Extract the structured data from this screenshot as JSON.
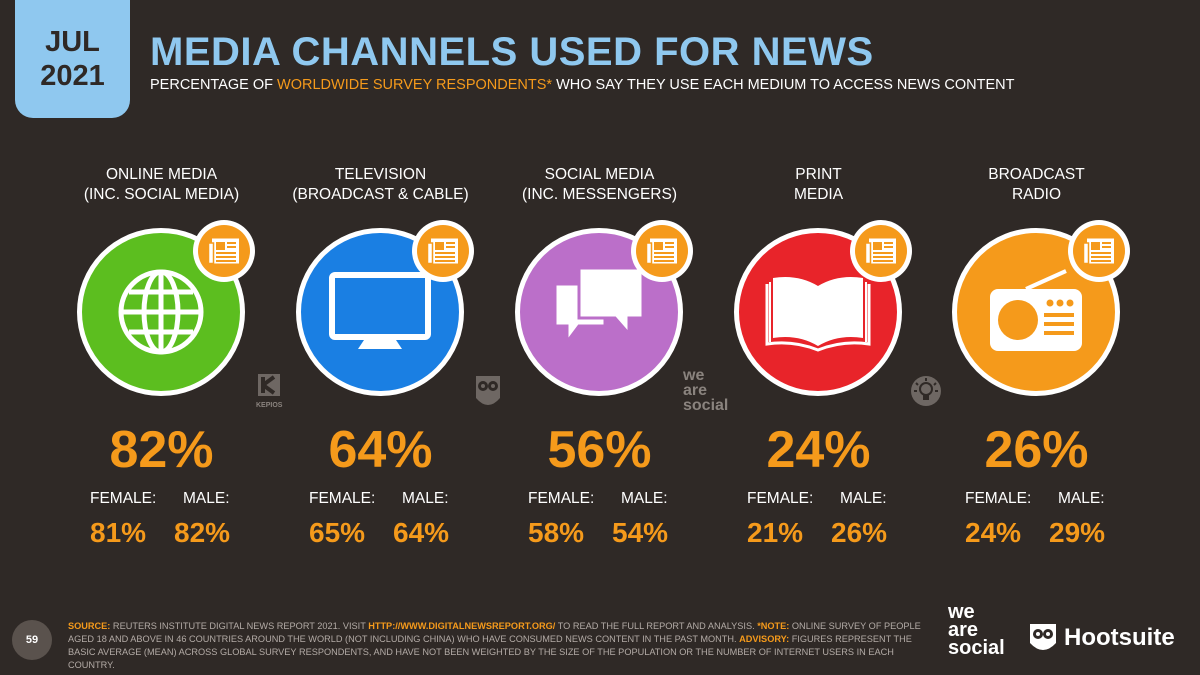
{
  "date": {
    "month": "JUL",
    "year": "2021"
  },
  "title": "MEDIA CHANNELS USED FOR NEWS",
  "subtitle": {
    "before": "PERCENTAGE OF ",
    "highlight": "WORLDWIDE SURVEY RESPONDENTS*",
    "after": " WHO SAY THEY USE EACH MEDIUM TO ACCESS NEWS CONTENT"
  },
  "gender_labels": {
    "female": "FEMALE:",
    "male": "MALE:"
  },
  "chart_data": {
    "type": "table",
    "categories": [
      "ONLINE MEDIA (INC. SOCIAL MEDIA)",
      "TELEVISION (BROADCAST & CABLE)",
      "SOCIAL MEDIA (INC. MESSENGERS)",
      "PRINT MEDIA",
      "BROADCAST RADIO"
    ],
    "series": [
      {
        "name": "",
        "values": [
          82,
          64,
          56,
          24,
          26
        ]
      },
      {
        "name": "FEMALE:",
        "values": [
          81,
          65,
          58,
          21,
          24
        ]
      },
      {
        "name": "MALE:",
        "values": [
          82,
          64,
          54,
          26,
          29
        ]
      }
    ],
    "channels": [
      {
        "line1": "ONLINE MEDIA",
        "line2": "(INC. SOCIAL MEDIA)",
        "total": "82%",
        "female": "81%",
        "male": "82%",
        "color": "#5cbe1f",
        "icon": "globe-icon"
      },
      {
        "line1": "TELEVISION",
        "line2": "(BROADCAST & CABLE)",
        "total": "64%",
        "female": "65%",
        "male": "64%",
        "color": "#1a7fe3",
        "icon": "television-icon"
      },
      {
        "line1": "SOCIAL MEDIA",
        "line2": "(INC. MESSENGERS)",
        "total": "56%",
        "female": "58%",
        "male": "54%",
        "color": "#bb6fc9",
        "icon": "chat-bubbles-icon"
      },
      {
        "line1": "PRINT",
        "line2": "MEDIA",
        "total": "24%",
        "female": "21%",
        "male": "26%",
        "color": "#e8242a",
        "icon": "open-book-icon"
      },
      {
        "line1": "BROADCAST",
        "line2": "RADIO",
        "total": "26%",
        "female": "24%",
        "male": "29%",
        "color": "#f59a1b",
        "icon": "radio-icon"
      }
    ]
  },
  "footer": {
    "page": "59",
    "source_label": "SOURCE:",
    "source_text": " REUTERS INSTITUTE DIGITAL NEWS REPORT 2021. VISIT ",
    "source_url": "HTTP://WWW.DIGITALNEWSREPORT.ORG/",
    "source_text2": " TO READ THE FULL REPORT AND ANALYSIS. ",
    "note_label": "*NOTE:",
    "note_text": " ONLINE SURVEY OF PEOPLE AGED 18 AND ABOVE IN 46 COUNTRIES AROUND THE WORLD (NOT INCLUDING CHINA) WHO HAVE CONSUMED NEWS CONTENT IN THE PAST MONTH. ",
    "advisory_label": "ADVISORY:",
    "advisory_text": " FIGURES REPRESENT THE BASIC AVERAGE (MEAN) ACROSS GLOBAL SURVEY RESPONDENTS, AND HAVE NOT BEEN WEIGHTED BY THE SIZE OF THE POPULATION OR THE NUMBER OF INTERNET USERS IN EACH COUNTRY."
  },
  "brands": {
    "we_are_social": [
      "we",
      "are",
      "social"
    ],
    "hootsuite": "Hootsuite",
    "kepios": "KEPIOS"
  }
}
